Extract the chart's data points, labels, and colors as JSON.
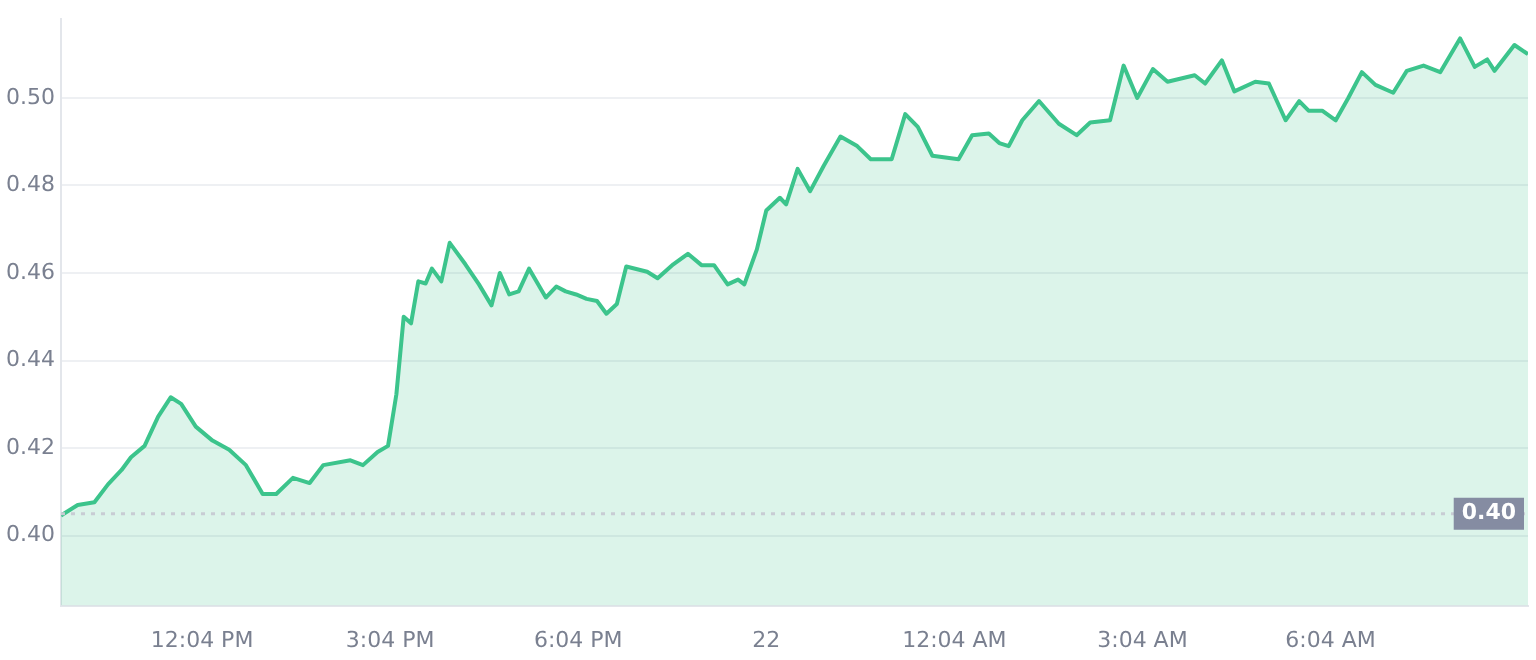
{
  "chart_data": {
    "type": "area",
    "color": "#3cc48c",
    "x": [
      "--01-21T09:49",
      "--01-21T10:05",
      "--01-21T10:21",
      "--01-21T10:34",
      "--01-21T10:47",
      "--01-21T10:56",
      "--01-21T11:09",
      "--01-21T11:22",
      "--01-21T11:34",
      "--01-21T11:44",
      "--01-21T11:58",
      "--01-21T12:14",
      "--01-21T12:30",
      "--01-21T12:46",
      "--01-21T13:02",
      "--01-21T13:15",
      "--01-21T13:31",
      "--01-21T13:47",
      "--01-21T14:00",
      "--01-21T14:26",
      "--01-21T14:38",
      "--01-21T14:52",
      "--01-21T15:02",
      "--01-21T15:10",
      "--01-21T15:17",
      "--01-21T15:24",
      "--01-21T15:31",
      "--01-21T15:38",
      "--01-21T15:44",
      "--01-21T15:53",
      "--01-21T16:01",
      "--01-21T16:16",
      "--01-21T16:29",
      "--01-21T16:41",
      "--01-21T16:49",
      "--01-21T16:58",
      "--01-21T17:07",
      "--01-21T17:17",
      "--01-21T17:33",
      "--01-21T17:43",
      "--01-21T17:52",
      "--01-21T18:02",
      "--01-21T18:12",
      "--01-21T18:22",
      "--01-21T18:31",
      "--01-21T18:41",
      "--01-21T18:50",
      "--01-21T19:10",
      "--01-21T19:20",
      "--01-21T19:35",
      "--01-21T19:49",
      "--01-21T20:02",
      "--01-21T20:14",
      "--01-21T20:27",
      "--01-21T20:37",
      "--01-21T20:43",
      "--01-21T20:55",
      "--01-21T21:04",
      "--01-21T21:17",
      "--01-21T21:23",
      "--01-21T21:34",
      "--01-21T21:46",
      "--01-21T21:59",
      "--01-21T22:15",
      "--01-21T22:31",
      "--01-21T22:44",
      "--01-21T23:04",
      "--01-21T23:17",
      "--01-21T23:29",
      "--01-21T23:43",
      "--01-22T00:08",
      "--01-22T00:21",
      "--01-22T00:37",
      "--01-22T00:47",
      "--01-22T00:56",
      "--01-22T01:09",
      "--01-22T01:25",
      "--01-22T01:44",
      "--01-22T02:01",
      "--01-22T02:14",
      "--01-22T02:33",
      "--01-22T02:46",
      "--01-22T02:59",
      "--01-22T03:14",
      "--01-22T03:28",
      "--01-22T03:54",
      "--01-22T04:04",
      "--01-22T04:20",
      "--01-22T04:32",
      "--01-22T04:52",
      "--01-22T05:05",
      "--01-22T05:21",
      "--01-22T05:34",
      "--01-22T05:43",
      "--01-22T05:56",
      "--01-22T06:09",
      "--01-22T06:21",
      "--01-22T06:34",
      "--01-22T06:47",
      "--01-22T07:04",
      "--01-22T07:17",
      "--01-22T07:33",
      "--01-22T07:49",
      "--01-22T08:08",
      "--01-22T08:22",
      "--01-22T08:34",
      "--01-22T08:41",
      "--01-22T09:00",
      "--01-22T09:13"
    ],
    "values": [
      0.4046,
      0.407,
      0.4076,
      0.4117,
      0.415,
      0.4179,
      0.4205,
      0.4272,
      0.4316,
      0.4301,
      0.4249,
      0.4217,
      0.4196,
      0.4161,
      0.4095,
      0.4095,
      0.4132,
      0.412,
      0.4161,
      0.4172,
      0.4161,
      0.4191,
      0.4205,
      0.4323,
      0.45,
      0.4485,
      0.4581,
      0.4576,
      0.461,
      0.4581,
      0.4669,
      0.462,
      0.4574,
      0.4526,
      0.46,
      0.4551,
      0.4558,
      0.461,
      0.4544,
      0.4569,
      0.4558,
      0.4551,
      0.4541,
      0.4536,
      0.4507,
      0.4529,
      0.4615,
      0.4603,
      0.4588,
      0.462,
      0.4644,
      0.4618,
      0.4618,
      0.4574,
      0.4585,
      0.4574,
      0.4654,
      0.4743,
      0.4772,
      0.4757,
      0.4838,
      0.4787,
      0.4845,
      0.4912,
      0.489,
      0.486,
      0.486,
      0.4963,
      0.4934,
      0.4868,
      0.486,
      0.4915,
      0.4919,
      0.4897,
      0.489,
      0.4949,
      0.4993,
      0.4941,
      0.4915,
      0.4944,
      0.4949,
      0.5074,
      0.5,
      0.5066,
      0.5037,
      0.5052,
      0.5033,
      0.5086,
      0.5015,
      0.5037,
      0.5033,
      0.4949,
      0.4993,
      0.4971,
      0.4971,
      0.4949,
      0.5,
      0.5059,
      0.503,
      0.5012,
      0.5062,
      0.5074,
      0.5059,
      0.5136,
      0.5071,
      0.5088,
      0.5062,
      0.5121,
      0.51
    ],
    "xlim": [
      "--01-21T09:49",
      "--01-22T09:13"
    ],
    "xticks": [
      {
        "value": "--01-21T12:04",
        "label": "12:04 PM"
      },
      {
        "value": "--01-21T15:04",
        "label": "3:04 PM"
      },
      {
        "value": "--01-21T18:04",
        "label": "6:04 PM"
      },
      {
        "value": "--01-21T21:04",
        "label": "22"
      },
      {
        "value": "--01-22T00:04",
        "label": "12:04 AM"
      },
      {
        "value": "--01-22T03:04",
        "label": "3:04 AM"
      },
      {
        "value": "--01-22T06:04",
        "label": "6:04 AM"
      }
    ],
    "ylim": [
      0.384,
      0.518
    ],
    "yticks": [
      {
        "value": 0.4,
        "label": "0.40"
      },
      {
        "value": 0.42,
        "label": "0.42"
      },
      {
        "value": 0.44,
        "label": "0.44"
      },
      {
        "value": 0.46,
        "label": "0.46"
      },
      {
        "value": 0.48,
        "label": "0.48"
      },
      {
        "value": 0.5,
        "label": "0.50"
      }
    ],
    "grid": "y",
    "legend": false,
    "marker": "none",
    "line_style": "solid",
    "ref_lines": [
      {
        "axis": "y",
        "value": 0.405,
        "label": "0.40",
        "color": "#c8ccd4",
        "line_style": "dotted"
      }
    ]
  }
}
